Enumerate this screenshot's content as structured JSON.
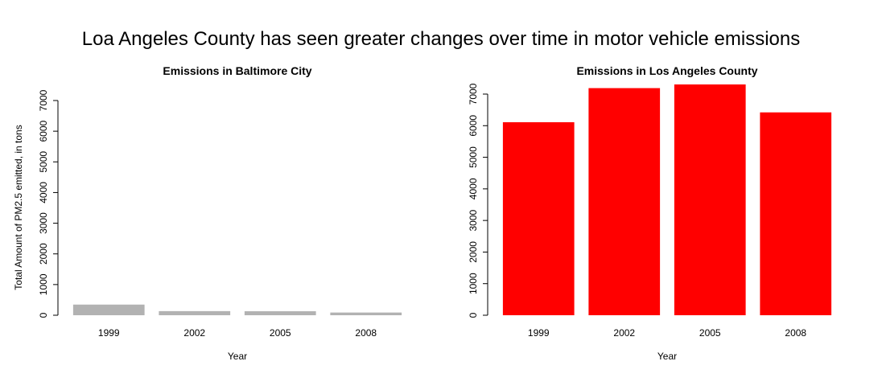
{
  "figure": {
    "title": "Loa Angeles County has seen greater changes over time in motor vehicle emissions"
  },
  "chart_data": [
    {
      "type": "bar",
      "title": "Emissions in Baltimore City",
      "xlabel": "Year",
      "ylabel": "Total Amount of PM2.5 emitted, in tons",
      "categories": [
        "1999",
        "2002",
        "2005",
        "2008"
      ],
      "series": [
        {
          "values": [
            347,
            134,
            130,
            88
          ]
        }
      ],
      "ylim": [
        0,
        7000
      ],
      "yticks": [
        0,
        1000,
        2000,
        3000,
        4000,
        5000,
        6000,
        7000
      ],
      "ytick_labels": [
        "0",
        "1000",
        "2000",
        "3000",
        "4000",
        "5000",
        "6000",
        "7000"
      ],
      "bar_color": "#b2b2b2",
      "grid": false,
      "legend": "none"
    },
    {
      "type": "bar",
      "title": "Emissions in Los Angeles County",
      "xlabel": "Year",
      "ylabel": "",
      "categories": [
        "1999",
        "2002",
        "2005",
        "2008"
      ],
      "series": [
        {
          "values": [
            6109,
            7189,
            7305,
            6421
          ]
        }
      ],
      "ylim": [
        0,
        7000
      ],
      "yticks": [
        0,
        1000,
        2000,
        3000,
        4000,
        5000,
        6000,
        7000
      ],
      "ytick_labels": [
        "0",
        "1000",
        "2000",
        "3000",
        "4000",
        "5000",
        "6000",
        "7000"
      ],
      "bar_color": "#ff0000",
      "grid": false,
      "legend": "none"
    }
  ]
}
